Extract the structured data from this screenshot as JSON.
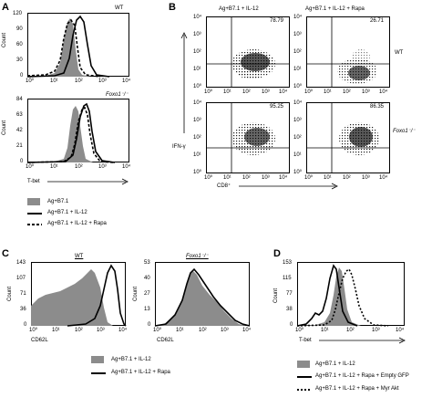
{
  "panels": {
    "A": {
      "letter": "A",
      "top": {
        "label": "WT",
        "ylabel": "Count",
        "yticks": [
          "120",
          "90",
          "60",
          "30",
          "0"
        ],
        "xticks": [
          "10⁰",
          "10¹",
          "10²",
          "10³",
          "10⁴"
        ]
      },
      "bottom": {
        "label": "Foxo1⁻/⁻",
        "ylabel": "Count",
        "yticks": [
          "84",
          "63",
          "42",
          "21",
          "0"
        ],
        "xticks": [
          "10⁰",
          "10¹",
          "10²",
          "10³",
          "10⁴"
        ]
      },
      "xlabel": "T-bet",
      "legend": [
        {
          "style": "gray-fill",
          "label": "Ag+B7.1"
        },
        {
          "style": "solid",
          "label": "Ag+B7.1 + IL-12"
        },
        {
          "style": "dashed",
          "label": "Ag+B7.1 + IL-12 + Rapa"
        }
      ]
    },
    "B": {
      "letter": "B",
      "col_titles": [
        "Ag+B7.1 + IL-12",
        "Ag+B7.1 + IL-12 + Rapa"
      ],
      "row_labels": [
        "WT",
        "Foxo1⁻/⁻"
      ],
      "percentages": [
        "78.79",
        "26.71",
        "95.25",
        "86.35"
      ],
      "xlabel": "CD8⁺",
      "ylabel": "IFN-γ",
      "yticks": [
        "10⁴",
        "10³",
        "10²",
        "10¹",
        "10⁰"
      ],
      "xticks": [
        "10⁰",
        "10¹",
        "10²",
        "10³",
        "10⁴"
      ]
    },
    "C": {
      "letter": "C",
      "left": {
        "title": "WT",
        "ylabel": "Count",
        "yticks": [
          "143",
          "107",
          "71",
          "36",
          "0"
        ],
        "xticks": [
          "10⁰",
          "10¹",
          "10²",
          "10³",
          "10⁴"
        ]
      },
      "right": {
        "title": "Foxo1⁻/⁻",
        "ylabel": "Count",
        "yticks": [
          "53",
          "40",
          "27",
          "13",
          "0"
        ],
        "xticks": [
          "10⁰",
          "10¹",
          "10²",
          "10³",
          "10⁴"
        ]
      },
      "xlabel": "CD62L",
      "legend": [
        {
          "style": "gray-fill",
          "label": "Ag+B7.1 + IL-12"
        },
        {
          "style": "solid",
          "label": "Ag+B7.1 + IL-12 + Rapa"
        }
      ]
    },
    "D": {
      "letter": "D",
      "ylabel": "Count",
      "yticks": [
        "153",
        "115",
        "77",
        "38",
        "0"
      ],
      "xticks": [
        "10⁰",
        "10¹",
        "10²",
        "10³",
        "10⁴"
      ],
      "xlabel": "T-bet",
      "legend": [
        {
          "style": "gray-fill",
          "label": "Ag+B7.1 + IL-12"
        },
        {
          "style": "solid",
          "label": "Ag+B7.1 + IL-12 + Rapa + Empty GFP"
        },
        {
          "style": "dotted",
          "label": "Ag+B7.1 + IL-12 + Rapa + Myr Akt"
        }
      ]
    }
  }
}
